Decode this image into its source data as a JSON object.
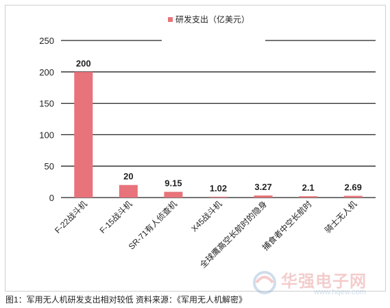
{
  "chart_data": {
    "type": "bar",
    "categories": [
      "F-22战斗机",
      "F-15战斗机",
      "SR-71有人侦查机",
      "X45战斗机",
      "全球鹰高空长航时的隐身",
      "捕食者中空长航时",
      "骑士无人机"
    ],
    "series": [
      {
        "name": "研发支出（亿美元）",
        "values": [
          200,
          20,
          9.15,
          1.02,
          3.27,
          2.1,
          2.69
        ]
      }
    ],
    "data_labels": [
      "200",
      "20",
      "9.15",
      "1.02",
      "3.27",
      "2.1",
      "2.69"
    ],
    "y_ticks": [
      "0",
      "50",
      "100",
      "150",
      "200",
      "250"
    ],
    "ylim": [
      0,
      250
    ],
    "grid": true,
    "legend_position": "top-center",
    "bar_color": "#e8737a"
  },
  "caption": "图1：军用无人机研发支出相对较低   资料来源：《军用无人机解密》",
  "watermark": {
    "title": "华强电子网",
    "url": "www.hqew.com"
  }
}
